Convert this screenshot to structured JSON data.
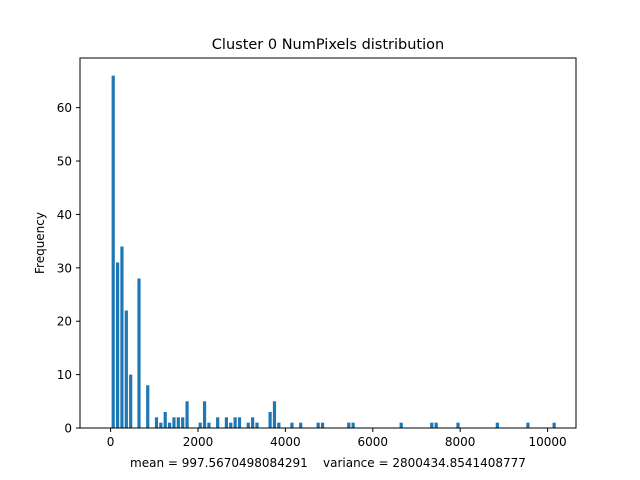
{
  "chart_data": {
    "type": "bar",
    "title": "Cluster 0 NumPixels distribution",
    "xlabel": "mean = 997.5670498084291    variance = 2800434.8541408777",
    "ylabel": "Frequency",
    "xlim": [
      -700,
      10650
    ],
    "ylim": [
      0,
      69.3
    ],
    "xticks": [
      0,
      2000,
      4000,
      6000,
      8000,
      10000
    ],
    "xtick_labels": [
      "0",
      "2000",
      "4000",
      "6000",
      "8000",
      "10000"
    ],
    "yticks": [
      0,
      10,
      20,
      30,
      40,
      50,
      60
    ],
    "ytick_labels": [
      "0",
      "10",
      "20",
      "30",
      "40",
      "50",
      "60"
    ],
    "grid": false,
    "bar_color": "#1f77b4",
    "series": [
      {
        "x": [
          60,
          160,
          260,
          360,
          460,
          650,
          850,
          1050,
          1150,
          1250,
          1350,
          1450,
          1550,
          1650,
          1750,
          2050,
          2150,
          2250,
          2450,
          2650,
          2750,
          2850,
          2950,
          3150,
          3250,
          3350,
          3650,
          3750,
          3850,
          4150,
          4350,
          4750,
          4850,
          5450,
          5550,
          6650,
          7350,
          7450,
          7950,
          8850,
          9550,
          10150
        ],
        "values": [
          66,
          31,
          34,
          22,
          10,
          28,
          8,
          2,
          1,
          3,
          1,
          2,
          2,
          2,
          5,
          1,
          5,
          1,
          2,
          2,
          1,
          2,
          2,
          1,
          2,
          1,
          3,
          5,
          1,
          1,
          1,
          1,
          1,
          1,
          1,
          1,
          1,
          1,
          1,
          1,
          1,
          1
        ]
      }
    ]
  }
}
